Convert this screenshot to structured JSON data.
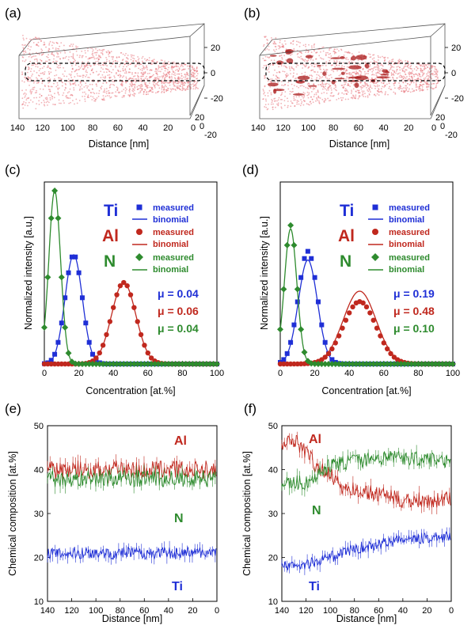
{
  "colors": {
    "Ti": "#1f2fd6",
    "Al": "#c0281e",
    "N": "#2e8b2e",
    "cloud": "#e8737a",
    "cluster": "#a81a1a"
  },
  "chart_data": [
    {
      "panel": "(a)",
      "type": "3d-point-cloud",
      "xlabel": "Distance [nm]",
      "x_ticks": [
        "140",
        "120",
        "100",
        "80",
        "60",
        "40",
        "20",
        "0"
      ],
      "z_ticks": [
        "20",
        "0",
        "-20"
      ],
      "y_ticks": [
        "20",
        "0",
        "-20"
      ],
      "clusters": false
    },
    {
      "panel": "(b)",
      "type": "3d-point-cloud",
      "xlabel": "Distance [nm]",
      "x_ticks": [
        "140",
        "120",
        "100",
        "80",
        "60",
        "40",
        "20",
        "0"
      ],
      "z_ticks": [
        "20",
        "0",
        "-20"
      ],
      "y_ticks": [
        "20",
        "0",
        "-20"
      ],
      "clusters": true
    },
    {
      "panel": "(c)",
      "type": "scatter",
      "xlabel": "Concentration [at.%]",
      "ylabel": "Normalized intensity [a.u.]",
      "xlim": [
        0,
        100
      ],
      "ylim": [
        0,
        1.05
      ],
      "x_ticks": [
        0,
        20,
        40,
        60,
        80,
        100
      ],
      "legend": {
        "elements": [
          "Ti",
          "Al",
          "N"
        ],
        "entries": [
          "measured",
          "binomial",
          "measured",
          "binomial",
          "measured",
          "binomial"
        ]
      },
      "series": [
        {
          "name": "Ti",
          "marker": "square",
          "mean": 17,
          "sd": 5,
          "peak": 0.63
        },
        {
          "name": "Al",
          "marker": "circle",
          "mean": 46,
          "sd": 7,
          "peak": 0.47
        },
        {
          "name": "N",
          "marker": "diamond",
          "mean": 6,
          "sd": 3.4,
          "peak": 1.0
        }
      ],
      "mu": [
        "μ = 0.04",
        "μ = 0.06",
        "μ = 0.04"
      ]
    },
    {
      "panel": "(d)",
      "type": "scatter",
      "xlabel": "Concentration [at.%]",
      "ylabel": "Normalized intensity [a.u.]",
      "xlim": [
        0,
        100
      ],
      "ylim": [
        0,
        1.05
      ],
      "x_ticks": [
        0,
        20,
        40,
        60,
        80,
        100
      ],
      "legend": {
        "elements": [
          "Ti",
          "Al",
          "N"
        ],
        "entries": [
          "measured",
          "binomial",
          "measured",
          "binomial",
          "measured",
          "binomial"
        ]
      },
      "series": [
        {
          "name": "Ti",
          "marker": "square",
          "mean": 16,
          "sd": 5.5,
          "peak": 0.65,
          "binomial_peak": 0.6
        },
        {
          "name": "Al",
          "marker": "circle",
          "mean": 46,
          "sd": 9.5,
          "peak": 0.36,
          "binomial_peak": 0.42
        },
        {
          "name": "N",
          "marker": "diamond",
          "mean": 6,
          "sd": 3.6,
          "peak": 0.8,
          "binomial_peak": 0.78
        }
      ],
      "mu": [
        "μ = 0.19",
        "μ = 0.48",
        "μ = 0.10"
      ]
    },
    {
      "panel": "(e)",
      "type": "line",
      "xlabel": "Distance [nm]",
      "ylabel": "Chemical composition [at.%]",
      "xlim": [
        140,
        0
      ],
      "ylim": [
        10,
        50
      ],
      "x_ticks": [
        140,
        120,
        100,
        80,
        60,
        40,
        20,
        0
      ],
      "y_ticks": [
        10,
        20,
        30,
        40,
        50
      ],
      "series": [
        {
          "name": "Al",
          "trend": [
            [
              140,
              40
            ],
            [
              0,
              40
            ]
          ],
          "noise": 1.6
        },
        {
          "name": "N",
          "trend": [
            [
              140,
              38
            ],
            [
              0,
              38
            ]
          ],
          "noise": 1.5
        },
        {
          "name": "Ti",
          "trend": [
            [
              140,
              21
            ],
            [
              0,
              21
            ]
          ],
          "noise": 1.1
        }
      ]
    },
    {
      "panel": "(f)",
      "type": "line",
      "xlabel": "Distance [nm]",
      "ylabel": "Chemical composition [at.%]",
      "xlim": [
        140,
        0
      ],
      "ylim": [
        10,
        50
      ],
      "x_ticks": [
        140,
        120,
        100,
        80,
        60,
        40,
        20,
        0
      ],
      "y_ticks": [
        10,
        20,
        30,
        40,
        50
      ],
      "series": [
        {
          "name": "Al",
          "trend": [
            [
              140,
              45
            ],
            [
              130,
              47
            ],
            [
              120,
              44
            ],
            [
              110,
              40
            ],
            [
              100,
              39
            ],
            [
              90,
              36
            ],
            [
              70,
              35
            ],
            [
              40,
              33
            ],
            [
              0,
              33
            ]
          ],
          "noise": 1.4
        },
        {
          "name": "N",
          "trend": [
            [
              140,
              37
            ],
            [
              120,
              37
            ],
            [
              110,
              39
            ],
            [
              100,
              41
            ],
            [
              80,
              42
            ],
            [
              50,
              43
            ],
            [
              0,
              42
            ]
          ],
          "noise": 1.3
        },
        {
          "name": "Ti",
          "trend": [
            [
              140,
              18
            ],
            [
              120,
              18.5
            ],
            [
              100,
              20
            ],
            [
              80,
              22
            ],
            [
              60,
              23
            ],
            [
              40,
              24
            ],
            [
              20,
              24.5
            ],
            [
              0,
              24.5
            ]
          ],
          "noise": 1.0
        }
      ]
    }
  ]
}
